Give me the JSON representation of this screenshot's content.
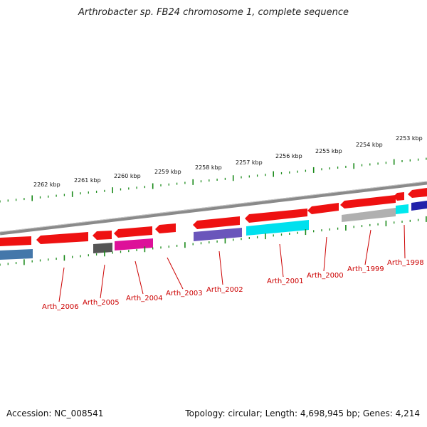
{
  "title": "Arthrobacter sp. FB24 chromosome 1, complete sequence",
  "footer": {
    "accession": "Accession: NC_008541",
    "summary": "Topology: circular; Length: 4,698,945 bp; Genes: 4,214"
  },
  "colors": {
    "background": "#ffffff",
    "backbone": "#8a8a8a",
    "tick": "#1a8a1a",
    "gene_forward": "#ee1111",
    "label": "#cc0000"
  },
  "outer_scale": {
    "labels": [
      "2262 kbp",
      "2261 kbp",
      "2260 kbp",
      "2259 kbp",
      "2258 kbp",
      "2257 kbp",
      "2256 kbp",
      "2255 kbp",
      "2254 kbp",
      "2253 kbp"
    ]
  },
  "gene_labels": [
    "Arth_2006",
    "Arth_2005",
    "Arth_2004",
    "Arth_2003",
    "Arth_2002",
    "Arth_2001",
    "Arth_2000",
    "Arth_1999",
    "Arth_1998"
  ]
}
